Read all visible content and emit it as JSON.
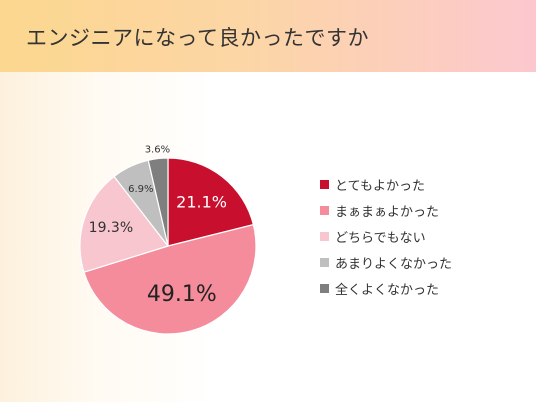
{
  "header": {
    "title": "エンジニアになって良かったですか"
  },
  "chart_data": {
    "type": "pie",
    "title": "エンジニアになって良かったですか",
    "categories": [
      "とてもよかった",
      "まぁまぁよかった",
      "どちらでもない",
      "あまりよくなかった",
      "全くよくなかった"
    ],
    "values": [
      21.1,
      49.1,
      19.3,
      6.9,
      3.6
    ],
    "value_labels": [
      "21.1%",
      "49.1%",
      "19.3%",
      "6.9%",
      "3.6%"
    ],
    "colors": [
      "#c8102e",
      "#f48c9c",
      "#f7c6cf",
      "#bfbfbf",
      "#7f7f7f"
    ],
    "label_colors": [
      "#ffffff",
      "#222222",
      "#333333",
      "#333333",
      "#333333"
    ],
    "label_font_sizes": [
      16,
      22,
      14,
      10,
      10
    ],
    "start_angle": "12 o'clock",
    "direction": "clockwise",
    "legend_position": "right"
  }
}
